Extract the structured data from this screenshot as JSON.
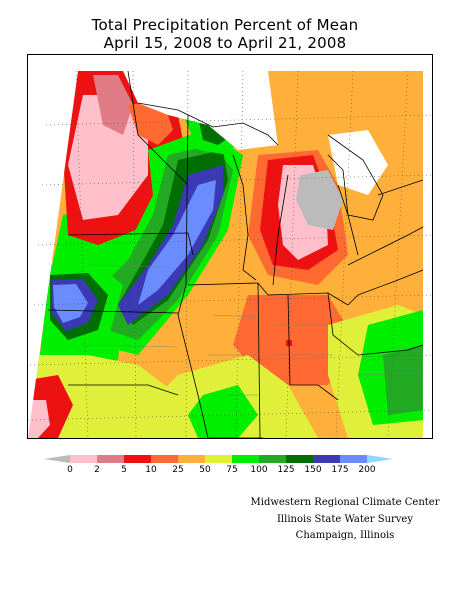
{
  "title": {
    "line1": "Total Precipitation Percent of Mean",
    "line2": "April 15, 2008 to April 21, 2008"
  },
  "legend": {
    "ticks": [
      "0",
      "2",
      "5",
      "10",
      "25",
      "50",
      "75",
      "100",
      "125",
      "150",
      "175",
      "200"
    ],
    "colors": [
      "#bbbbbb",
      "#ffbfcb",
      "#e07c85",
      "#ee1111",
      "#ff6a33",
      "#ffb03a",
      "#e0f03a",
      "#00ee00",
      "#22aa22",
      "#006f00",
      "#3b3ab4",
      "#6a8cff",
      "#8fd8ff"
    ]
  },
  "credits": {
    "line1": "Midwestern Regional Climate Center",
    "line2": "Illinois State Water Survey",
    "line3": "Champaign, Illinois"
  }
}
